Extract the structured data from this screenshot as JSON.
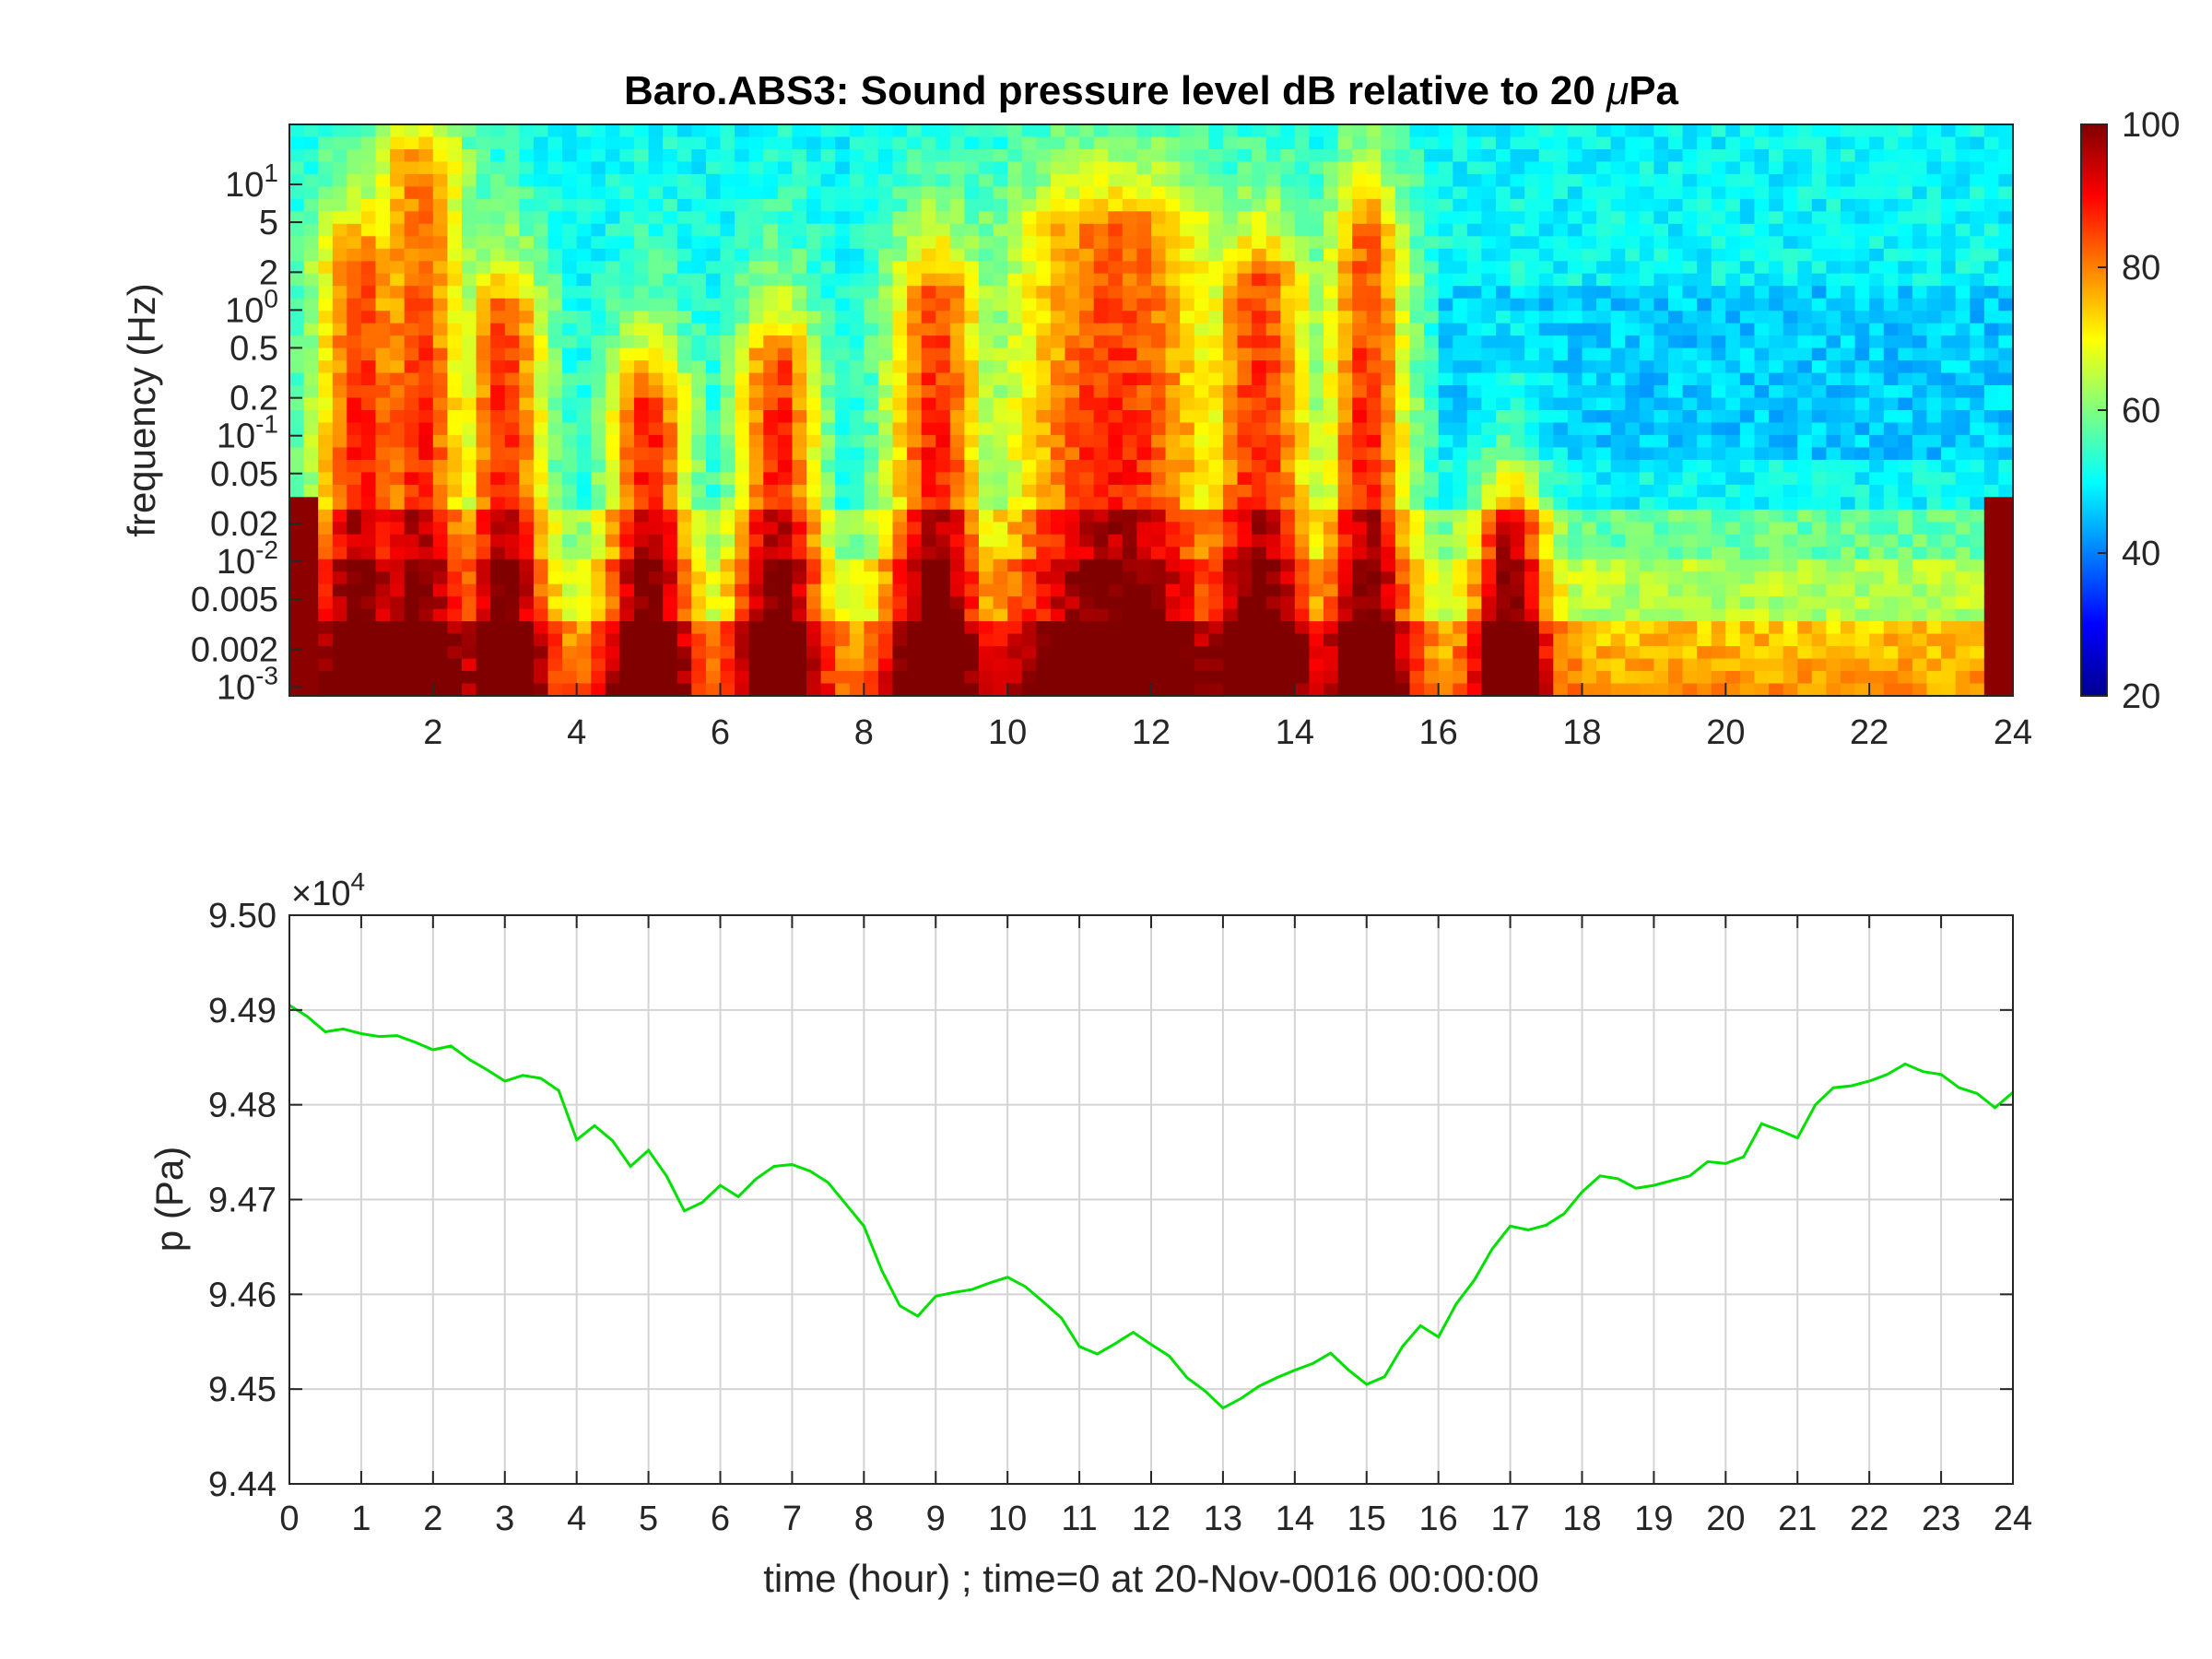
{
  "chart_data": [
    {
      "type": "heatmap",
      "title_prefix": "Baro.ABS3: Sound pressure level dB relative to 20 ",
      "title_unit": "μ",
      "title_suffix": "Pa",
      "ylabel": "frequency (Hz)",
      "xlabel": "",
      "xlim": [
        0,
        24
      ],
      "ylim": [
        0.00085,
        30
      ],
      "yscale": "log",
      "xticks": [
        2,
        4,
        6,
        8,
        10,
        12,
        14,
        16,
        18,
        20,
        22,
        24
      ],
      "yticks": [
        {
          "value": 10,
          "base": "10",
          "exp": "1"
        },
        {
          "value": 5,
          "label": "5"
        },
        {
          "value": 2,
          "label": "2"
        },
        {
          "value": 1,
          "base": "10",
          "exp": "0"
        },
        {
          "value": 0.5,
          "label": "0.5"
        },
        {
          "value": 0.2,
          "label": "0.2"
        },
        {
          "value": 0.1,
          "base": "10",
          "exp": "-1"
        },
        {
          "value": 0.05,
          "label": "0.05"
        },
        {
          "value": 0.02,
          "label": "0.02"
        },
        {
          "value": 0.01,
          "base": "10",
          "exp": "-2"
        },
        {
          "value": 0.005,
          "label": "0.005"
        },
        {
          "value": 0.002,
          "label": "0.002"
        },
        {
          "value": 0.001,
          "base": "10",
          "exp": "-3"
        }
      ],
      "colorbar": {
        "range": [
          20,
          100
        ],
        "ticks": [
          20,
          40,
          60,
          80,
          100
        ],
        "colormap": "jet"
      },
      "colors": {
        "background_level": "#00ffff",
        "high": "#ff0000"
      }
    },
    {
      "type": "line",
      "ylabel": "p (Pa)",
      "xlabel": "time (hour) ; time=0 at 20-Nov-0016 00:00:00",
      "exponent_base": "×10",
      "exponent_power": "4",
      "xlim": [
        0,
        24
      ],
      "ylim": [
        9.44,
        9.5
      ],
      "xticks": [
        0,
        1,
        2,
        3,
        4,
        5,
        6,
        7,
        8,
        9,
        10,
        11,
        12,
        13,
        14,
        15,
        16,
        17,
        18,
        19,
        20,
        21,
        22,
        23,
        24
      ],
      "yticks": [
        9.44,
        9.45,
        9.46,
        9.47,
        9.48,
        9.49,
        9.5
      ],
      "grid": true,
      "series": [
        {
          "color": "#00e000",
          "x": [
            0,
            0.25,
            0.5,
            0.75,
            1,
            1.25,
            1.5,
            1.75,
            2,
            2.25,
            2.5,
            2.75,
            3,
            3.25,
            3.5,
            3.75,
            4,
            4.25,
            4.5,
            4.75,
            5,
            5.25,
            5.5,
            5.75,
            6,
            6.25,
            6.5,
            6.75,
            7,
            7.25,
            7.5,
            7.75,
            8,
            8.25,
            8.5,
            8.75,
            9,
            9.25,
            9.5,
            9.75,
            10,
            10.25,
            10.5,
            10.75,
            11,
            11.25,
            11.5,
            11.75,
            12,
            12.25,
            12.5,
            12.75,
            13,
            13.25,
            13.5,
            13.75,
            14,
            14.25,
            14.5,
            14.75,
            15,
            15.25,
            15.5,
            15.75,
            16,
            16.25,
            16.5,
            16.75,
            17,
            17.25,
            17.5,
            17.75,
            18,
            18.25,
            18.5,
            18.75,
            19,
            19.25,
            19.5,
            19.75,
            20,
            20.25,
            20.5,
            20.75,
            21,
            21.25,
            21.5,
            21.75,
            22,
            22.25,
            22.5,
            22.75,
            23,
            23.25,
            23.5,
            23.75,
            24
          ],
          "y": [
            9.4905,
            9.4893,
            9.4877,
            9.488,
            9.4875,
            9.4872,
            9.4873,
            9.4866,
            9.4858,
            9.4862,
            9.4848,
            9.4837,
            9.4825,
            9.4831,
            9.4828,
            9.4815,
            9.4763,
            9.4778,
            9.4762,
            9.4735,
            9.4752,
            9.4725,
            9.4688,
            9.4697,
            9.4715,
            9.4703,
            9.4722,
            9.4735,
            9.4737,
            9.473,
            9.4718,
            9.4695,
            9.4672,
            9.4625,
            9.4588,
            9.4577,
            9.4598,
            9.4602,
            9.4605,
            9.4612,
            9.4618,
            9.4608,
            9.4592,
            9.4575,
            9.4545,
            9.4537,
            9.4548,
            9.456,
            9.4547,
            9.4535,
            9.4512,
            9.4498,
            9.448,
            9.449,
            9.4503,
            9.4512,
            9.452,
            9.4527,
            9.4538,
            9.452,
            9.4505,
            9.4513,
            9.4545,
            9.4567,
            9.4555,
            9.459,
            9.4615,
            9.4648,
            9.4672,
            9.4668,
            9.4673,
            9.4685,
            9.4708,
            9.4725,
            9.4722,
            9.4712,
            9.4715,
            9.472,
            9.4725,
            9.474,
            9.4738,
            9.4745,
            9.478,
            9.4773,
            9.4765,
            9.48,
            9.4818,
            9.482,
            9.4825,
            9.4832,
            9.4843,
            9.4835,
            9.4832,
            9.4818,
            9.4812,
            9.4797,
            9.4813
          ]
        }
      ]
    }
  ]
}
